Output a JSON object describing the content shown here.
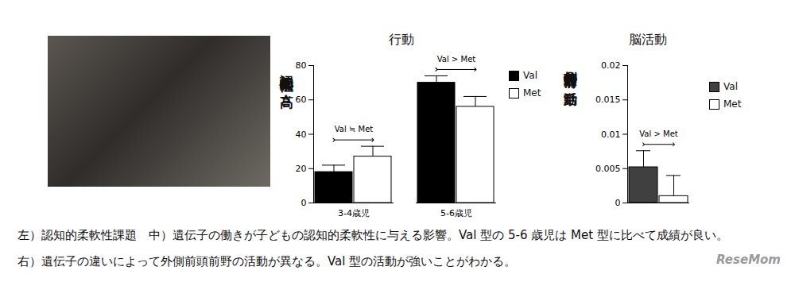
{
  "chart_data": [
    {
      "type": "bar",
      "title": "行動",
      "y_label": "認知的柔軟性の高さ",
      "categories": [
        "3-4歳児",
        "5-6歳児"
      ],
      "series": [
        {
          "name": "Val",
          "color": "#000000",
          "values": [
            18,
            70
          ],
          "errors": [
            4,
            4
          ]
        },
        {
          "name": "Met",
          "color": "#ffffff",
          "values": [
            27,
            56
          ],
          "errors": [
            6,
            6
          ]
        }
      ],
      "ylim": [
        0,
        80
      ],
      "yticks": [
        0,
        20,
        40,
        60,
        80
      ],
      "legend": "right",
      "annotations": [
        {
          "category": "3-4歳児",
          "text": "Val ≒ Met"
        },
        {
          "category": "5-6歳児",
          "text": "Val > Met"
        }
      ]
    },
    {
      "type": "bar",
      "title": "脳活動",
      "y_label": "外側前頭前野の活動",
      "categories": [
        null
      ],
      "series": [
        {
          "name": "Val",
          "color": "#404040",
          "values": [
            0.0052
          ],
          "errors": [
            0.0024
          ]
        },
        {
          "name": "Met",
          "color": "#ffffff",
          "values": [
            0.001
          ],
          "errors": [
            0.003
          ]
        }
      ],
      "ylim": [
        0,
        0.02
      ],
      "yticks": [
        0,
        0.005,
        0.01,
        0.015,
        0.02
      ],
      "legend": "right",
      "annotations": [
        {
          "category": null,
          "text": "Val > Met"
        }
      ]
    }
  ],
  "caption": [
    "左）認知的柔軟性課題　中）遺伝子の働きが子どもの認知的柔軟性に与える影響。Val 型の 5-6 歳児は Met 型に比べて成績が良い。",
    "右）遺伝子の違いによって外側前頭前野の活動が異なる。Val 型の活動が強いことがわかる。"
  ],
  "watermark": "ReseMom"
}
